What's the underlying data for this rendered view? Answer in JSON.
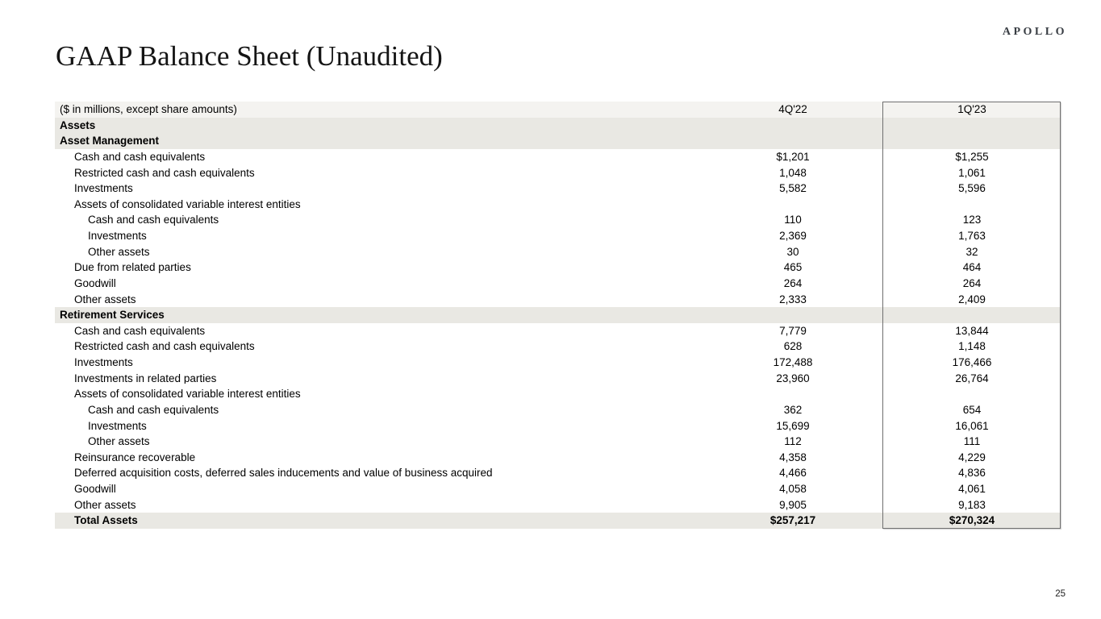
{
  "page": {
    "logo": "APOLLO",
    "title": "GAAP Balance Sheet (Unaudited)",
    "page_number": "25"
  },
  "colors": {
    "header_band": "#f4f3f0",
    "section_band": "#e9e8e3",
    "highlight_border": "#6f6f6f",
    "logo_text": "#383d43"
  },
  "table": {
    "header": {
      "label": "($ in millions, except share amounts)",
      "col1": "4Q'22",
      "col2": "1Q'23"
    },
    "rows": [
      {
        "type": "section",
        "label": "Assets",
        "v1": "",
        "v2": ""
      },
      {
        "type": "section",
        "label": "Asset Management",
        "v1": "",
        "v2": ""
      },
      {
        "type": "item1",
        "label": "Cash and cash equivalents",
        "v1": "$1,201",
        "v2": "$1,255"
      },
      {
        "type": "item1",
        "label": "Restricted cash and cash equivalents",
        "v1": "1,048",
        "v2": "1,061"
      },
      {
        "type": "item1",
        "label": "Investments",
        "v1": "5,582",
        "v2": "5,596"
      },
      {
        "type": "item1",
        "label": "Assets of consolidated variable interest entities",
        "v1": "",
        "v2": ""
      },
      {
        "type": "item2",
        "label": "Cash and cash equivalents",
        "v1": "110",
        "v2": "123"
      },
      {
        "type": "item2",
        "label": "Investments",
        "v1": "2,369",
        "v2": "1,763"
      },
      {
        "type": "item2",
        "label": "Other assets",
        "v1": "30",
        "v2": "32"
      },
      {
        "type": "item1",
        "label": "Due from related parties",
        "v1": "465",
        "v2": "464"
      },
      {
        "type": "item1",
        "label": "Goodwill",
        "v1": "264",
        "v2": "264"
      },
      {
        "type": "item1",
        "label": "Other assets",
        "v1": "2,333",
        "v2": "2,409"
      },
      {
        "type": "section",
        "label": "Retirement Services",
        "v1": "",
        "v2": ""
      },
      {
        "type": "item1",
        "label": "Cash and cash equivalents",
        "v1": "7,779",
        "v2": "13,844"
      },
      {
        "type": "item1",
        "label": "Restricted cash and cash equivalents",
        "v1": "628",
        "v2": "1,148"
      },
      {
        "type": "item1",
        "label": "Investments",
        "v1": "172,488",
        "v2": "176,466"
      },
      {
        "type": "item1",
        "label": "Investments in related parties",
        "v1": "23,960",
        "v2": "26,764"
      },
      {
        "type": "item1",
        "label": "Assets of consolidated variable interest entities",
        "v1": "",
        "v2": ""
      },
      {
        "type": "item2",
        "label": "Cash and cash equivalents",
        "v1": "362",
        "v2": "654"
      },
      {
        "type": "item2",
        "label": "Investments",
        "v1": "15,699",
        "v2": "16,061"
      },
      {
        "type": "item2",
        "label": "Other assets",
        "v1": "112",
        "v2": "111"
      },
      {
        "type": "item1",
        "label": "Reinsurance recoverable",
        "v1": "4,358",
        "v2": "4,229"
      },
      {
        "type": "item1",
        "label": "Deferred acquisition costs, deferred sales inducements and value of business acquired",
        "v1": "4,466",
        "v2": "4,836"
      },
      {
        "type": "item1",
        "label": "Goodwill",
        "v1": "4,058",
        "v2": "4,061"
      },
      {
        "type": "item1",
        "label": "Other assets",
        "v1": "9,905",
        "v2": "9,183"
      },
      {
        "type": "total",
        "label": "Total Assets",
        "v1": "$257,217",
        "v2": "$270,324"
      }
    ]
  }
}
